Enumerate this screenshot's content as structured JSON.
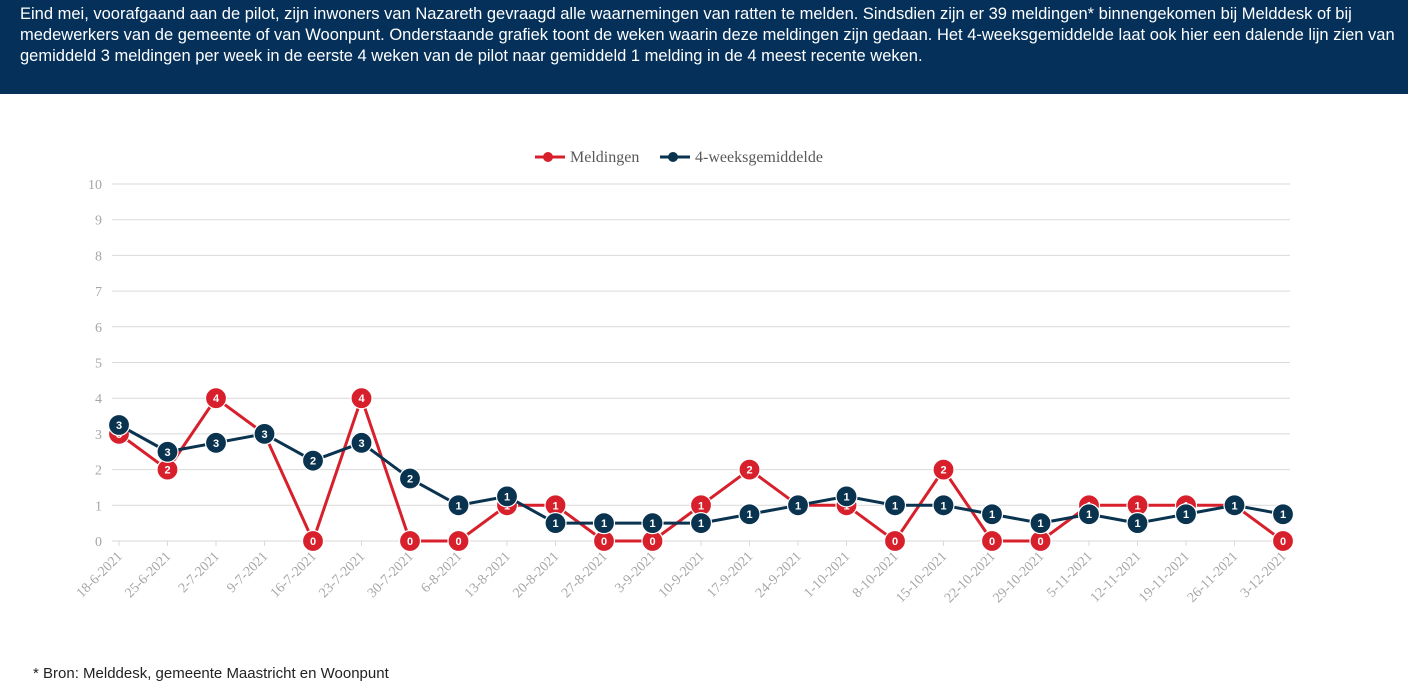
{
  "header": {
    "text": "Eind mei, voorafgaand aan de pilot, zijn inwoners van Nazareth gevraagd alle waarnemingen van ratten te melden. Sindsdien zijn er 39 meldingen* binnengekomen bij Melddesk of bij medewerkers van de gemeente of van Woonpunt. Onderstaande grafiek toont de weken waarin deze meldingen zijn gedaan. Het 4-weeksgemiddelde laat ook hier een dalende lijn zien van gemiddeld 3 meldingen per week in de eerste 4 weken van de pilot naar gemiddeld 1 melding in de 4 meest recente weken."
  },
  "footnote": "* Bron: Melddesk, gemeente Maastricht en Woonpunt",
  "colors": {
    "meldingen": "#d7202b",
    "gemiddelde": "#0a3350",
    "header_bg": "#04305a",
    "grid": "#d9d9d9"
  },
  "chart_data": {
    "type": "line",
    "title": "",
    "xlabel": "",
    "ylabel": "",
    "ylim": [
      0,
      10
    ],
    "yticks": [
      0,
      1,
      2,
      3,
      4,
      5,
      6,
      7,
      8,
      9,
      10
    ],
    "legend_position": "top-center",
    "categories": [
      "18-6-2021",
      "25-6-2021",
      "2-7-2021",
      "9-7-2021",
      "16-7-2021",
      "23-7-2021",
      "30-7-2021",
      "6-8-2021",
      "13-8-2021",
      "20-8-2021",
      "27-8-2021",
      "3-9-2021",
      "10-9-2021",
      "17-9-2021",
      "24-9-2021",
      "1-10-2021",
      "8-10-2021",
      "15-10-2021",
      "22-10-2021",
      "29-10-2021",
      "5-11-2021",
      "12-11-2021",
      "19-11-2021",
      "26-11-2021",
      "3-12-2021"
    ],
    "series": [
      {
        "name": "Meldingen",
        "color": "#d7202b",
        "values": [
          3,
          2,
          4,
          3,
          0,
          4,
          0,
          0,
          1,
          1,
          0,
          0,
          1,
          2,
          1,
          1,
          0,
          2,
          0,
          0,
          1,
          1,
          1,
          1,
          0
        ],
        "labels": [
          "3",
          "2",
          "4",
          "3",
          "0",
          "4",
          "0",
          "0",
          "1",
          "1",
          "0",
          "0",
          "1",
          "2",
          "1",
          "1",
          "0",
          "2",
          "0",
          "0",
          "1",
          "1",
          "1",
          "1",
          "0"
        ]
      },
      {
        "name": "4-weeksgemiddelde",
        "color": "#0a3350",
        "values": [
          3.25,
          2.5,
          2.75,
          3,
          2.25,
          2.75,
          1.75,
          1,
          1.25,
          0.5,
          0.5,
          0.5,
          0.5,
          0.75,
          1,
          1.25,
          1,
          1,
          0.75,
          0.5,
          0.75,
          0.5,
          0.75,
          1,
          0.75
        ],
        "labels": [
          "3",
          "3",
          "3",
          "3",
          "2",
          "3",
          "2",
          "1",
          "1",
          "1",
          "1",
          "1",
          "1",
          "1",
          "1",
          "1",
          "1",
          "1",
          "1",
          "1",
          "1",
          "1",
          "1",
          "1",
          "1"
        ]
      }
    ]
  }
}
